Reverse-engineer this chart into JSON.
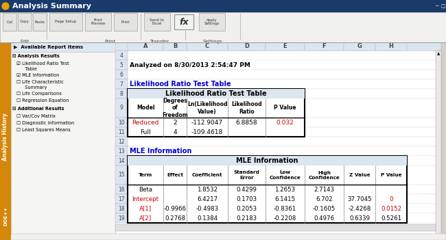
{
  "title_bar": "Analysis Summary",
  "analyzed_text": "Analyzed on 8/30/2013 2:54:47 PM",
  "section1_label": "Likelihood Ratio Test Table",
  "lrt_title": "Likelihood Ratio Test Table",
  "lrt_headers": [
    "Model",
    "Degrees\nof\nFreedom",
    "Ln(Likelihood\nValue)",
    "Likelihood\nRatio",
    "P Value"
  ],
  "lrt_rows": [
    [
      "Reduced",
      "2",
      "-112.9047",
      "6.8858",
      "0.032"
    ],
    [
      "Full",
      "4",
      "-109.4618",
      "",
      ""
    ]
  ],
  "section2_label": "MLE Information",
  "mle_title": "MLE Information",
  "mle_headers": [
    "Term",
    "Effect",
    "Coefficient",
    "Standard\nError",
    "Low\nConfidence",
    "High\nConfidence",
    "Z Value",
    "P Value"
  ],
  "mle_rows": [
    [
      "Beta",
      "",
      "1.8532",
      "0.4299",
      "1.2653",
      "2.7143",
      "",
      ""
    ],
    [
      "Intercept",
      "",
      "6.4217",
      "0.1703",
      "6.1415",
      "6.702",
      "37.7045",
      "0"
    ],
    [
      "A[1]",
      "-0.9966",
      "-0.4983",
      "0.2053",
      "-0.8361",
      "-0.1605",
      "-2.4268",
      "0.0152"
    ],
    [
      "A[2]",
      "0.2768",
      "0.1384",
      "0.2183",
      "-0.2208",
      "0.4976",
      "0.6339",
      "0.5261"
    ]
  ],
  "mle_red_terms": [
    "Intercept",
    "A[1]",
    "A[2]"
  ],
  "mle_red_pvals": [
    "0",
    "0.0152"
  ],
  "col_letters": [
    "A",
    "B",
    "C",
    "D",
    "E",
    "F",
    "G",
    "H"
  ],
  "blue_text": "#0000CC",
  "red_text": "#CC0000"
}
